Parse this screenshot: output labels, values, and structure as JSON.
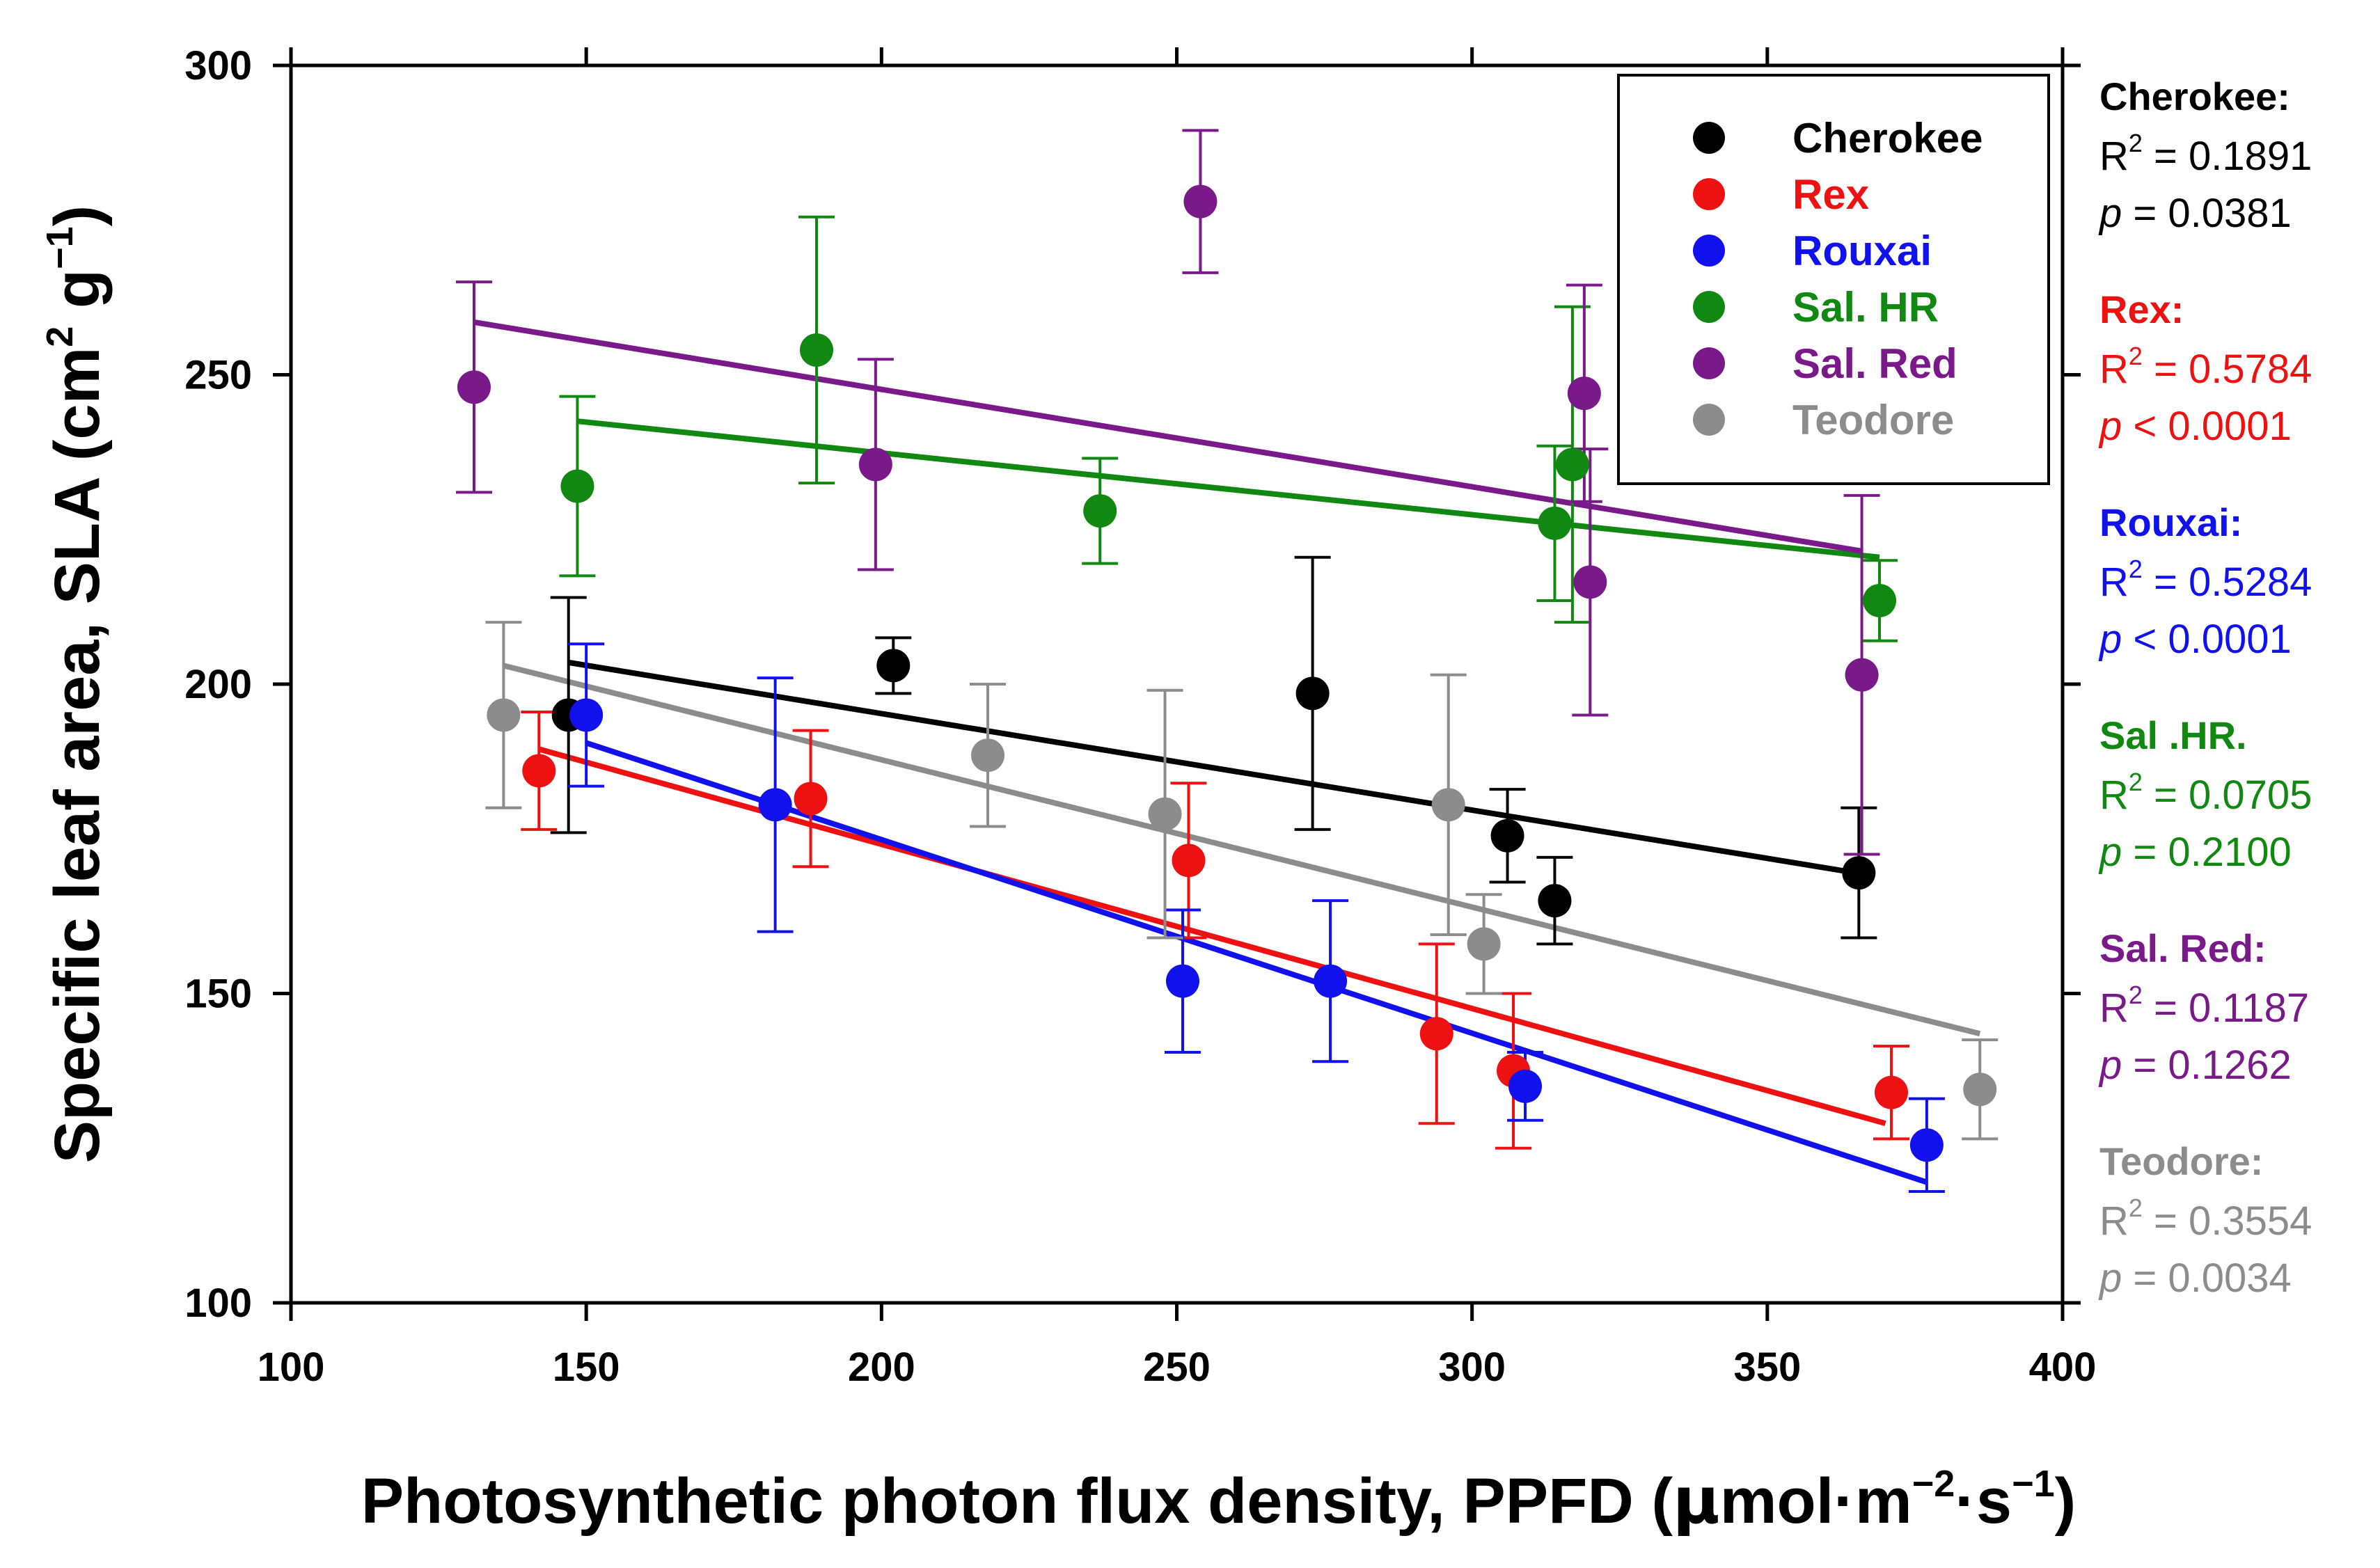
{
  "chart_data": {
    "type": "scatter",
    "title": "",
    "xlabel": {
      "main": "Photosynthetic photon flux density, PPFD (",
      "mu": "μ",
      "unit_mol": "mol·m",
      "sup1": "−2",
      "unit_s": "·s",
      "sup2": "−1",
      "close": ")"
    },
    "ylabel": {
      "main": "Specific leaf area, SLA (cm",
      "sup1": "2",
      "mid": " g",
      "sup2": "−1",
      "close": ")"
    },
    "xlim": [
      100,
      400
    ],
    "ylim": [
      100,
      300
    ],
    "xticks": [
      100,
      150,
      200,
      250,
      300,
      350,
      400
    ],
    "yticks": [
      100,
      150,
      200,
      250,
      300
    ],
    "legend_position": "top-right",
    "series": [
      {
        "name": "Cherokee",
        "color": "#000000",
        "points": [
          [
            147,
            195,
            19
          ],
          [
            202,
            203,
            4.5
          ],
          [
            273,
            198.5,
            22
          ],
          [
            306,
            175.5,
            7.5
          ],
          [
            314,
            165,
            7
          ],
          [
            365.5,
            169.5,
            10.5
          ]
        ],
        "fit": [
          [
            147,
            203.5
          ],
          [
            365,
            169.5
          ]
        ],
        "stats": {
          "label": "Cherokee:",
          "r2": "0.1891",
          "p_op": "=",
          "p": "0.0381"
        }
      },
      {
        "name": "Rex",
        "color": "#ee1111",
        "points": [
          [
            142,
            186,
            9.5
          ],
          [
            188,
            181.5,
            11
          ],
          [
            252,
            171.5,
            12.5
          ],
          [
            294,
            143.5,
            14.5
          ],
          [
            307,
            137.5,
            12.5
          ],
          [
            371,
            134,
            7.5
          ]
        ],
        "fit": [
          [
            142,
            189.5
          ],
          [
            370,
            129
          ]
        ],
        "stats": {
          "label": "Rex:",
          "r2": "0.5784",
          "p_op": "<",
          "p": "0.0001"
        }
      },
      {
        "name": "Rouxai",
        "color": "#1111ee",
        "points": [
          [
            150,
            195,
            11.5
          ],
          [
            182,
            180.5,
            20.5
          ],
          [
            251,
            152,
            11.5
          ],
          [
            276,
            152,
            13
          ],
          [
            309,
            135,
            5.5
          ],
          [
            377,
            125.5,
            7.5
          ]
        ],
        "fit": [
          [
            150,
            190.5
          ],
          [
            377,
            119.5
          ]
        ],
        "stats": {
          "label": "Rouxai:",
          "r2": "0.5284",
          "p_op": "<",
          "p": "0.0001"
        }
      },
      {
        "name": "Sal. HR",
        "color": "#118811",
        "points": [
          [
            148.5,
            232,
            14.5
          ],
          [
            189,
            254,
            21.5
          ],
          [
            237,
            228,
            8.5
          ],
          [
            314,
            226,
            12.5
          ],
          [
            317,
            235.5,
            25.5
          ],
          [
            369,
            213.5,
            6.5
          ]
        ],
        "fit": [
          [
            148.5,
            242.5
          ],
          [
            369,
            220.5
          ]
        ],
        "stats": {
          "label": "Sal .HR.",
          "r2": "0.0705",
          "p_op": "=",
          "p": "0.2100"
        }
      },
      {
        "name": "Sal. Red",
        "color": "#7a1a8a",
        "points": [
          [
            131,
            248,
            17
          ],
          [
            199,
            235.5,
            17
          ],
          [
            254,
            278,
            11.5
          ],
          [
            319,
            247,
            17.5
          ],
          [
            320,
            216.5,
            21.5
          ],
          [
            366,
            201.5,
            29
          ]
        ],
        "fit": [
          [
            131,
            258.5
          ],
          [
            366,
            221.5
          ]
        ],
        "stats": {
          "label": "Sal. Red:",
          "r2": "0.1187",
          "p_op": "=",
          "p": "0.1262"
        }
      },
      {
        "name": "Teodore",
        "color": "#8c8c8c",
        "points": [
          [
            136,
            195,
            15
          ],
          [
            218,
            188.5,
            11.5
          ],
          [
            248,
            179,
            20
          ],
          [
            296,
            180.5,
            21
          ],
          [
            302,
            158,
            8
          ],
          [
            386,
            134.5,
            8
          ]
        ],
        "fit": [
          [
            136,
            203
          ],
          [
            386,
            143.5
          ]
        ],
        "stats": {
          "label": "Teodore:",
          "r2": "0.3554",
          "p_op": "=",
          "p": "0.0034"
        }
      }
    ]
  },
  "labels": {
    "r2_prefix": "R",
    "r2_sup": "2",
    "r2_eq": " = ",
    "p_prefix": "p"
  }
}
